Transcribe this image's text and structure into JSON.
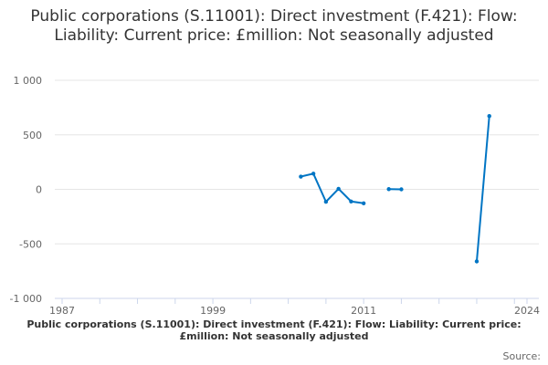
{
  "chart_data": {
    "type": "line",
    "title": "Public corporations (S.11001): Direct investment (F.421): Flow: Liability: Current price: £million: Not seasonally adjusted",
    "caption": "Public corporations (S.11001): Direct investment (F.421): Flow: Liability: Current price: £million: Not seasonally adjusted",
    "source_label": "Source:",
    "xlim": [
      1987,
      2024
    ],
    "ylim": [
      -1000,
      1000
    ],
    "x_tick_labels": [
      "1987",
      "1999",
      "2011",
      "2024"
    ],
    "y_ticks": [
      1000,
      500,
      0,
      -500,
      -1000
    ],
    "y_tick_labels": [
      "1 000",
      "500",
      "0",
      "-500",
      "-1 000"
    ],
    "grid": true,
    "color": "#0075c4",
    "series": [
      {
        "x": [
          2006,
          2007,
          2008,
          2009,
          2010,
          2011,
          2012,
          2013,
          2014,
          2015,
          2016,
          2017,
          2018,
          2019,
          2020,
          2021
        ],
        "values": [
          117,
          144,
          -114,
          5,
          -111,
          -128,
          null,
          2,
          0,
          null,
          null,
          null,
          null,
          null,
          -661,
          672
        ]
      }
    ]
  }
}
